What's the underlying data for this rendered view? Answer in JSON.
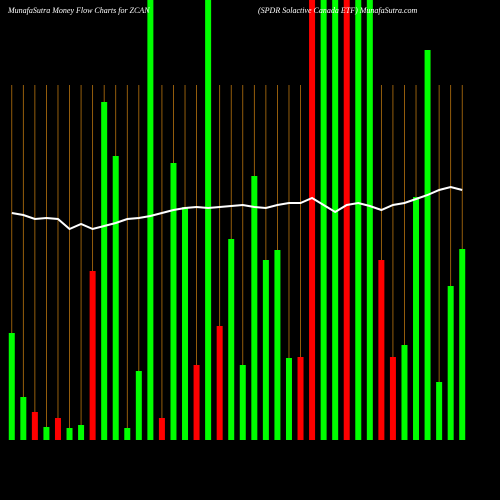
{
  "chart_data": {
    "type": "bar",
    "title": "MunafaSutra  Money Flow  Charts for ZCAN",
    "subtitle": "(SPDR Solactive Canada ETF) MunafaSutra.com",
    "categories": [
      null,
      null,
      null,
      null,
      null,
      null,
      null,
      null,
      null,
      null,
      null,
      null,
      null,
      null,
      null,
      null,
      null,
      null,
      null,
      null,
      null,
      null,
      null,
      null,
      null,
      null,
      null,
      null,
      null,
      null,
      null,
      null,
      null,
      null,
      null,
      null,
      null,
      null,
      null,
      null
    ],
    "values": [
      107,
      43,
      28,
      13,
      22,
      12,
      15,
      169,
      338,
      284,
      12,
      69,
      440,
      22,
      277,
      233,
      75,
      440,
      114,
      201,
      75,
      264,
      180,
      190,
      82,
      83,
      440,
      440,
      440,
      440,
      440,
      440,
      180,
      83,
      95,
      243,
      390,
      58,
      154,
      191
    ],
    "colors": [
      "#00ff00",
      "#00ff00",
      "#ff0000",
      "#00ff00",
      "#ff0000",
      "#00ff00",
      "#00ff00",
      "#ff0000",
      "#00ff00",
      "#00ff00",
      "#00ff00",
      "#00ff00",
      "#00ff00",
      "#ff0000",
      "#00ff00",
      "#00ff00",
      "#ff0000",
      "#00ff00",
      "#ff0000",
      "#00ff00",
      "#00ff00",
      "#00ff00",
      "#00ff00",
      "#00ff00",
      "#00ff00",
      "#ff0000",
      "#ff0000",
      "#00ff00",
      "#00ff00",
      "#ff0000",
      "#00ff00",
      "#00ff00",
      "#ff0000",
      "#ff0000",
      "#00ff00",
      "#00ff00",
      "#00ff00",
      "#00ff00",
      "#00ff00",
      "#00ff00"
    ],
    "line": {
      "color": "#ffffff",
      "values": [
        227,
        225,
        221,
        222,
        221,
        211,
        216,
        211,
        214,
        217,
        221,
        222,
        224,
        227,
        230,
        232,
        233,
        232,
        233,
        234,
        235,
        233,
        232,
        235,
        237,
        237,
        242,
        235,
        228,
        235,
        237,
        234,
        230,
        235,
        237,
        241,
        245,
        250,
        253,
        250
      ]
    },
    "ylim": [
      0,
      440
    ],
    "grid_color": "#b8740f"
  }
}
